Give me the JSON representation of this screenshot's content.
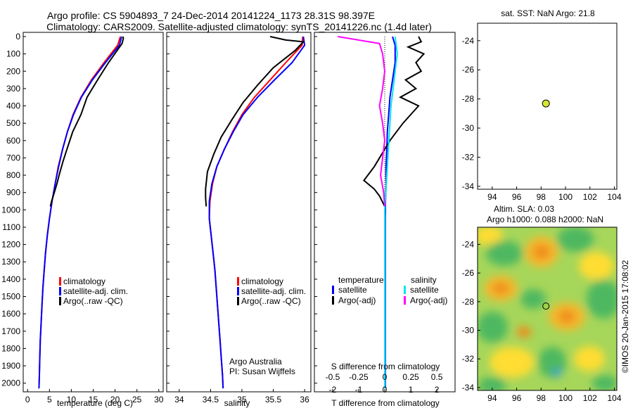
{
  "header": {
    "title_line1": "Argo profile: CS 5904893_7 24-Dec-2014 20141224_1173 28.31S 98.397E",
    "title_line2": "Climatology: CARS2009. Satellite-adjusted climatology: synTS_20141226.nc (1.4d later)"
  },
  "colors": {
    "climatology": "#ff0000",
    "satellite": "#0000ff",
    "argo": "#000000",
    "sal_satellite": "#00e5ee",
    "sal_argo": "#ff00ff"
  },
  "charts": {
    "depth_ticks": [
      "0",
      "100",
      "200",
      "300",
      "400",
      "500",
      "600",
      "700",
      "800",
      "900",
      "1000",
      "1100",
      "1200",
      "1300",
      "1400",
      "1500",
      "1600",
      "1700",
      "1800",
      "1900",
      "2000"
    ],
    "temperature": {
      "xlabel": "temperature (deg C)",
      "xticks": [
        "0",
        "5",
        "10",
        "15",
        "20",
        "25",
        "30"
      ],
      "legend": [
        "climatology",
        "satellite-adj. clim.",
        "Argo(..raw -QC)"
      ]
    },
    "salinity": {
      "xlabel": "salinity",
      "xticks": [
        "34",
        "34.5",
        "35",
        "35.5",
        "36"
      ],
      "legend": [
        "climatology",
        "satellite-adj. clim.",
        "Argo(..raw -QC)"
      ],
      "note_line1": "Argo Australia",
      "note_line2": "PI: Susan Wijffels"
    },
    "difference": {
      "xlabel": "T difference from climatology",
      "top_label": "S difference from climatology",
      "s_ticks": [
        "-0.5",
        "-0.25",
        "0",
        "0.25",
        "0.5"
      ],
      "t_ticks": [
        "-2",
        "-1",
        "0",
        "1",
        "2"
      ],
      "legend_temp_title": "temperature",
      "legend_sal_title": "salinity",
      "legend_temp": [
        "satellite",
        "Argo(-adj)"
      ],
      "legend_sal": [
        "satellite",
        "Argo(-adj)"
      ]
    },
    "sst_map": {
      "title": "sat. SST: NaN Argo: 21.8",
      "xticks": [
        "94",
        "96",
        "98",
        "100",
        "102",
        "104"
      ],
      "yticks": [
        "-24",
        "-26",
        "-28",
        "-30",
        "-32",
        "-34"
      ]
    },
    "sla_map": {
      "title_line1": "Altim. SLA: 0.03",
      "title_line2": "Argo h1000: 0.088 h2000: NaN",
      "xticks": [
        "94",
        "96",
        "98",
        "100",
        "102",
        "104"
      ],
      "yticks": [
        "-24",
        "-26",
        "-28",
        "-30",
        "-32",
        "-34"
      ],
      "credit": "©IMOS 20-Jan-2015 17:08:02"
    }
  },
  "chart_data": [
    {
      "type": "line",
      "panel": "temperature",
      "xlim": [
        -1,
        31
      ],
      "ylim": [
        2050,
        0
      ],
      "ylabel": "",
      "xlabel": "temperature (deg C)",
      "series": [
        {
          "name": "climatology",
          "color": "#ff0000",
          "x": [
            21.2,
            20.6,
            17.5,
            14.6,
            12.2,
            10.4,
            9.1,
            8.0,
            7.0,
            6.3,
            5.6,
            5.0,
            4.5,
            4.1,
            3.8,
            3.5,
            3.3,
            3.1,
            2.9,
            2.8,
            2.7,
            2.6
          ],
          "y": [
            0,
            50,
            150,
            250,
            350,
            450,
            550,
            650,
            750,
            850,
            950,
            1050,
            1150,
            1250,
            1350,
            1450,
            1550,
            1650,
            1750,
            1850,
            1950,
            2030
          ]
        },
        {
          "name": "satellite-adj. clim.",
          "color": "#0000ff",
          "x": [
            21.5,
            21.0,
            17.8,
            14.8,
            12.3,
            10.5,
            9.1,
            8.0,
            7.1,
            6.3,
            5.6,
            5.0,
            4.5,
            4.1,
            3.8,
            3.5,
            3.3,
            3.1,
            2.9,
            2.8,
            2.7,
            2.6
          ],
          "y": [
            0,
            50,
            150,
            250,
            350,
            450,
            550,
            650,
            750,
            850,
            950,
            1050,
            1150,
            1250,
            1350,
            1450,
            1550,
            1650,
            1750,
            1850,
            1950,
            2030
          ]
        },
        {
          "name": "Argo(..raw -QC)",
          "color": "#000000",
          "x": [
            21.8,
            21.9,
            21.6,
            18.5,
            16.0,
            13.6,
            12.2,
            10.3,
            9.0,
            8.1,
            7.2,
            6.7,
            6.1,
            5.5,
            5.2
          ],
          "y": [
            0,
            10,
            40,
            150,
            250,
            350,
            450,
            550,
            650,
            720,
            800,
            850,
            900,
            950,
            980
          ]
        }
      ]
    },
    {
      "type": "line",
      "panel": "salinity",
      "xlim": [
        33.8,
        36.1
      ],
      "ylim": [
        2050,
        0
      ],
      "xlabel": "salinity",
      "series": [
        {
          "name": "climatology",
          "color": "#ff0000",
          "x": [
            35.97,
            35.96,
            35.7,
            35.45,
            35.2,
            35.0,
            34.85,
            34.72,
            34.6,
            34.53,
            34.49,
            34.48,
            34.51,
            34.54,
            34.57,
            34.59,
            34.61,
            34.63,
            34.65,
            34.67,
            34.69,
            34.7
          ],
          "y": [
            0,
            50,
            150,
            250,
            350,
            450,
            550,
            650,
            750,
            850,
            950,
            1050,
            1150,
            1250,
            1350,
            1450,
            1550,
            1650,
            1750,
            1850,
            1950,
            2030
          ]
        },
        {
          "name": "satellite-adj. clim.",
          "color": "#0000ff",
          "x": [
            35.98,
            36.0,
            35.8,
            35.52,
            35.25,
            35.02,
            34.86,
            34.72,
            34.6,
            34.52,
            34.48,
            34.48,
            34.51,
            34.54,
            34.57,
            34.59,
            34.61,
            34.63,
            34.65,
            34.67,
            34.69,
            34.7
          ],
          "y": [
            0,
            50,
            150,
            250,
            350,
            450,
            550,
            650,
            750,
            850,
            950,
            1050,
            1150,
            1250,
            1350,
            1450,
            1550,
            1650,
            1750,
            1850,
            1950,
            2030
          ]
        },
        {
          "name": "Argo(..raw -QC)",
          "color": "#000000",
          "x": [
            35.45,
            35.7,
            35.98,
            35.85,
            35.5,
            35.25,
            35.02,
            34.84,
            34.67,
            34.55,
            34.45,
            34.42,
            34.42,
            34.43
          ],
          "y": [
            0,
            20,
            30,
            80,
            180,
            280,
            380,
            480,
            580,
            680,
            780,
            880,
            930,
            980
          ]
        }
      ]
    },
    {
      "type": "line",
      "panel": "difference",
      "t_xlim": [
        -2.7,
        2.7
      ],
      "s_xlim": [
        -0.675,
        0.675
      ],
      "ylim": [
        2050,
        0
      ],
      "xlabel": "T difference from climatology",
      "x2label": "S difference from climatology",
      "series": [
        {
          "name": "satellite",
          "quantity": "temperature",
          "color": "#0000ff",
          "x": [
            0.3,
            0.4,
            0.4,
            0.3,
            0.2,
            0.15,
            0.1,
            0.08,
            0.05,
            0.05,
            0.03,
            0.02,
            0.02,
            0.02,
            0.02,
            0.02,
            0.02,
            0.02,
            0.02,
            0.02
          ],
          "y": [
            0,
            50,
            150,
            250,
            350,
            450,
            550,
            650,
            750,
            850,
            950,
            1050,
            1250,
            1400,
            1550,
            1650,
            1750,
            1850,
            1950,
            2030
          ]
        },
        {
          "name": "Argo(-adj)",
          "quantity": "temperature",
          "color": "#000000",
          "x": [
            1.3,
            1.4,
            0.9,
            1.5,
            1.2,
            1.4,
            0.8,
            1.2,
            0.6,
            1.3,
            0.7,
            0.2,
            -0.4,
            -0.8,
            -0.4,
            -0.2,
            0.0
          ],
          "y": [
            0,
            30,
            60,
            100,
            150,
            200,
            250,
            300,
            350,
            400,
            500,
            600,
            750,
            830,
            880,
            920,
            980
          ]
        },
        {
          "name": "satellite",
          "quantity": "salinity",
          "color": "#00e5ee",
          "x": [
            0.1,
            0.12,
            0.1,
            0.08,
            0.06,
            0.05,
            0.04,
            0.03,
            0.02,
            0.01,
            0.0,
            0.0,
            0.0,
            0.0,
            0.0
          ],
          "y": [
            0,
            100,
            200,
            300,
            400,
            500,
            600,
            700,
            800,
            900,
            1000,
            1200,
            1500,
            1800,
            2030
          ]
        },
        {
          "name": "Argo(-adj)",
          "quantity": "salinity",
          "color": "#ff00ff",
          "x": [
            -0.45,
            -0.3,
            -0.05,
            -0.02,
            0.0,
            -0.02,
            -0.05,
            -0.02,
            0.0,
            -0.02,
            -0.04,
            -0.01,
            0.0
          ],
          "y": [
            0,
            15,
            40,
            100,
            200,
            300,
            400,
            500,
            600,
            700,
            800,
            900,
            980
          ]
        }
      ]
    },
    {
      "type": "scatter",
      "panel": "sst_map",
      "title": "sat. SST: NaN Argo: 21.8",
      "xlim": [
        92.8,
        104.2
      ],
      "ylim": [
        -34.2,
        -22.8
      ],
      "x": [
        98.397
      ],
      "y": [
        -28.31
      ]
    },
    {
      "type": "heatmap",
      "panel": "sla_map",
      "title": "Altim. SLA: 0.03",
      "xlim": [
        92.8,
        104.2
      ],
      "ylim": [
        -34.2,
        -22.8
      ],
      "float_position": {
        "x": 98.397,
        "y": -28.31
      }
    }
  ]
}
